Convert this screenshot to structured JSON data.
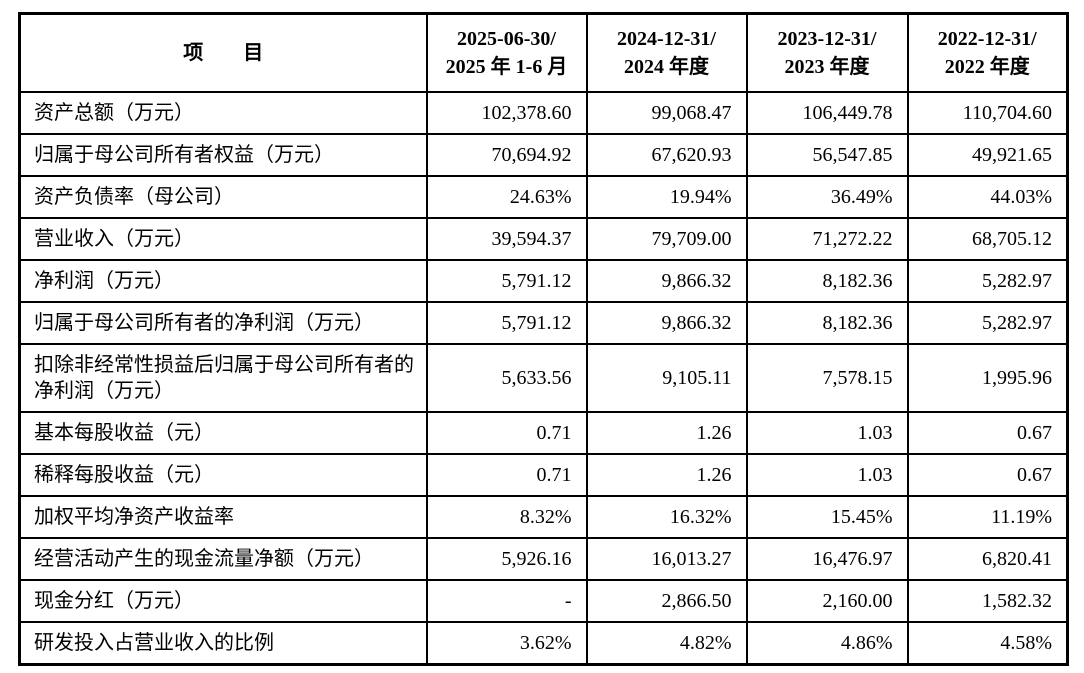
{
  "table": {
    "header": {
      "item_label": "项　　目",
      "periods": [
        {
          "line1": "2025-06-30/",
          "line2": "2025 年 1-6 月"
        },
        {
          "line1": "2024-12-31/",
          "line2": "2024 年度"
        },
        {
          "line1": "2023-12-31/",
          "line2": "2023 年度"
        },
        {
          "line1": "2022-12-31/",
          "line2": "2022 年度"
        }
      ]
    },
    "rows": [
      {
        "label": "资产总额（万元）",
        "values": [
          "102,378.60",
          "99,068.47",
          "106,449.78",
          "110,704.60"
        ]
      },
      {
        "label": "归属于母公司所有者权益（万元）",
        "values": [
          "70,694.92",
          "67,620.93",
          "56,547.85",
          "49,921.65"
        ]
      },
      {
        "label": "资产负债率（母公司）",
        "values": [
          "24.63%",
          "19.94%",
          "36.49%",
          "44.03%"
        ]
      },
      {
        "label": "营业收入（万元）",
        "values": [
          "39,594.37",
          "79,709.00",
          "71,272.22",
          "68,705.12"
        ]
      },
      {
        "label": "净利润（万元）",
        "values": [
          "5,791.12",
          "9,866.32",
          "8,182.36",
          "5,282.97"
        ]
      },
      {
        "label": "归属于母公司所有者的净利润（万元）",
        "values": [
          "5,791.12",
          "9,866.32",
          "8,182.36",
          "5,282.97"
        ]
      },
      {
        "label": "扣除非经常性损益后归属于母公司所有者的净利润（万元）",
        "values": [
          "5,633.56",
          "9,105.11",
          "7,578.15",
          "1,995.96"
        ],
        "tall": true
      },
      {
        "label": "基本每股收益（元）",
        "values": [
          "0.71",
          "1.26",
          "1.03",
          "0.67"
        ]
      },
      {
        "label": "稀释每股收益（元）",
        "values": [
          "0.71",
          "1.26",
          "1.03",
          "0.67"
        ]
      },
      {
        "label": "加权平均净资产收益率",
        "values": [
          "8.32%",
          "16.32%",
          "15.45%",
          "11.19%"
        ]
      },
      {
        "label": "经营活动产生的现金流量净额（万元）",
        "values": [
          "5,926.16",
          "16,013.27",
          "16,476.97",
          "6,820.41"
        ]
      },
      {
        "label": "现金分红（万元）",
        "values": [
          "-",
          "2,866.50",
          "2,160.00",
          "1,582.32"
        ]
      },
      {
        "label": "研发投入占营业收入的比例",
        "values": [
          "3.62%",
          "4.82%",
          "4.86%",
          "4.58%"
        ]
      }
    ],
    "colors": {
      "border": "#000000",
      "text": "#000000",
      "background": "#ffffff"
    }
  }
}
